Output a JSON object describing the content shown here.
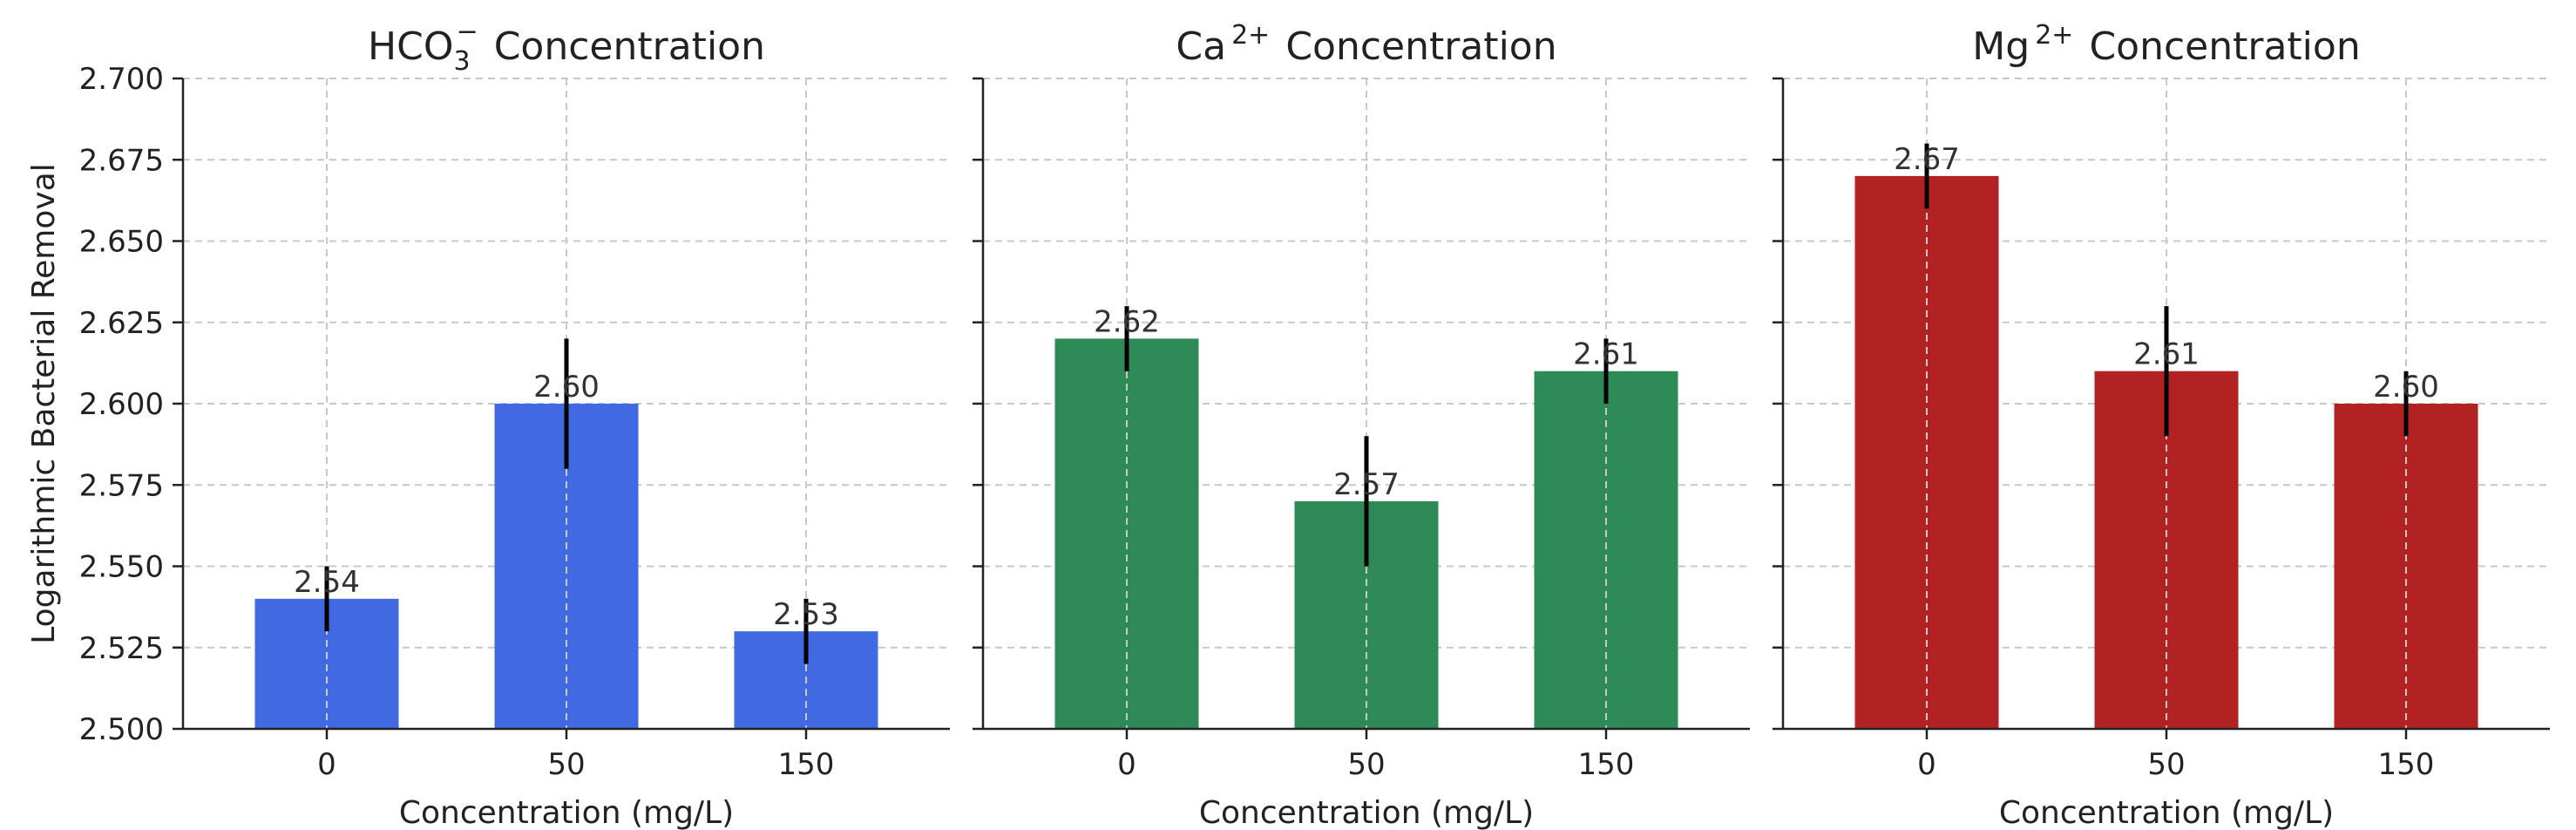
{
  "chart_data": [
    {
      "type": "bar",
      "title_main": "HCO",
      "title_sub": "3",
      "title_sup": "−",
      "title_rest": "Concentration",
      "xlabel": "Concentration (mg/L)",
      "ylabel": "Logarithmic Bacterial Removal",
      "categories": [
        "0",
        "50",
        "150"
      ],
      "values": [
        2.54,
        2.6,
        2.53
      ],
      "value_labels": [
        "2.54",
        "2.60",
        "2.53"
      ],
      "errors": [
        0.01,
        0.02,
        0.01
      ],
      "ylim": [
        2.5,
        2.7
      ],
      "yticks": [
        "2.500",
        "2.525",
        "2.550",
        "2.575",
        "2.600",
        "2.625",
        "2.650",
        "2.675",
        "2.700"
      ],
      "grid": true,
      "color": "#4169e1"
    },
    {
      "type": "bar",
      "title_main": "Ca",
      "title_sub": "",
      "title_sup": "2+",
      "title_rest": "Concentration",
      "xlabel": "Concentration (mg/L)",
      "ylabel": "",
      "categories": [
        "0",
        "50",
        "150"
      ],
      "values": [
        2.62,
        2.57,
        2.61
      ],
      "value_labels": [
        "2.62",
        "2.57",
        "2.61"
      ],
      "errors": [
        0.01,
        0.02,
        0.01
      ],
      "ylim": [
        2.5,
        2.7
      ],
      "yticks": [
        "2.500",
        "2.525",
        "2.550",
        "2.575",
        "2.600",
        "2.625",
        "2.650",
        "2.675",
        "2.700"
      ],
      "grid": true,
      "color": "#2e8b57"
    },
    {
      "type": "bar",
      "title_main": "Mg",
      "title_sub": "",
      "title_sup": "2+",
      "title_rest": "Concentration",
      "xlabel": "Concentration (mg/L)",
      "ylabel": "",
      "categories": [
        "0",
        "50",
        "150"
      ],
      "values": [
        2.67,
        2.61,
        2.6
      ],
      "value_labels": [
        "2.67",
        "2.61",
        "2.60"
      ],
      "errors": [
        0.01,
        0.02,
        0.01
      ],
      "ylim": [
        2.5,
        2.7
      ],
      "yticks": [
        "2.500",
        "2.525",
        "2.550",
        "2.575",
        "2.600",
        "2.625",
        "2.650",
        "2.675",
        "2.700"
      ],
      "grid": true,
      "color": "#b22222"
    }
  ]
}
